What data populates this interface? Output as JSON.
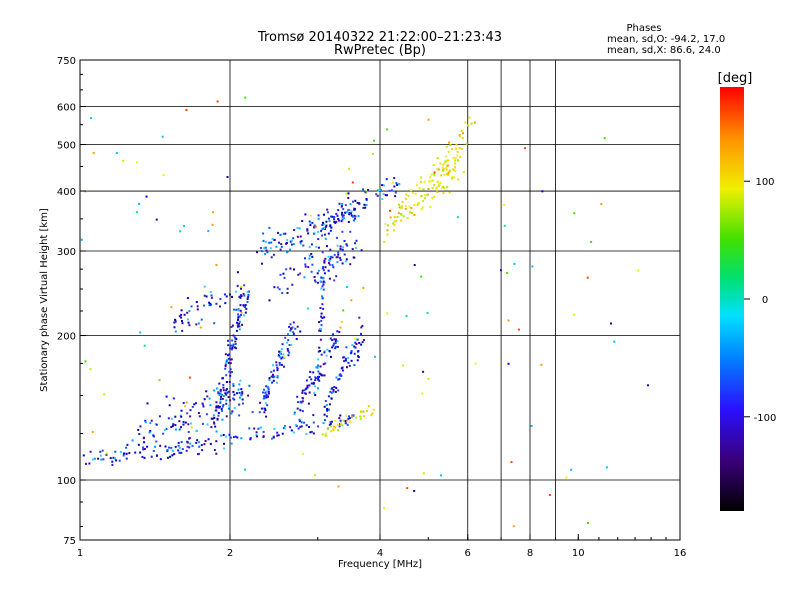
{
  "chart_data": {
    "type": "scatter",
    "title": "Tromsø 20140322 21:22:00–21:23:43",
    "subtitle": "RwPretec (Bp)",
    "xlabel": "Frequency [MHz]",
    "ylabel": "Stationary phase Virtual Height [km]",
    "x_scale": "log",
    "y_scale": "log",
    "xlim": [
      1,
      16
    ],
    "ylim": [
      75,
      750
    ],
    "x_ticks": [
      1,
      2,
      4,
      6,
      8,
      10,
      16
    ],
    "x_tick_labels": [
      "1",
      "2",
      "4",
      "6",
      "8",
      "10",
      "16"
    ],
    "x_gridlines": [
      2,
      4,
      6,
      7,
      8,
      9
    ],
    "y_ticks": [
      75,
      100,
      200,
      300,
      400,
      500,
      600,
      750
    ],
    "y_tick_labels": [
      "75",
      "100",
      "200",
      "300",
      "400",
      "500",
      "600",
      "750"
    ],
    "grid": true,
    "color_variable": "Phase",
    "stats": {
      "heading": "Phases",
      "line_o": "mean, sd,O: -94.2, 17.0",
      "line_x": "mean, sd,X: 86.6, 24.0"
    },
    "colorbar": {
      "label": "[deg]",
      "min": -180,
      "max": 180,
      "ticks": [
        100,
        0,
        -100
      ],
      "tick_labels": [
        "100",
        "0",
        "-100"
      ]
    },
    "series": [
      {
        "component": "O",
        "phase": -94.2,
        "segments": [
          {
            "x0": 1.0,
            "x1": 2.0,
            "y0": 110,
            "y1": 120,
            "count": 90,
            "spread": 0.03
          },
          {
            "x0": 2.0,
            "x1": 3.6,
            "y0": 122,
            "y1": 135,
            "count": 70,
            "spread": 0.025
          },
          {
            "x0": 1.3,
            "x1": 2.2,
            "y0": 125,
            "y1": 150,
            "count": 120,
            "spread": 0.07
          },
          {
            "x0": 1.55,
            "x1": 2.15,
            "y0": 215,
            "y1": 245,
            "count": 60,
            "spread": 0.06
          },
          {
            "x0": 1.85,
            "x1": 2.15,
            "y0": 130,
            "y1": 240,
            "count": 120,
            "spread": 0.04
          },
          {
            "x0": 2.3,
            "x1": 2.7,
            "y0": 140,
            "y1": 210,
            "count": 90,
            "spread": 0.04
          },
          {
            "x0": 2.7,
            "x1": 3.3,
            "y0": 135,
            "y1": 200,
            "count": 80,
            "spread": 0.04
          },
          {
            "x0": 3.1,
            "x1": 3.7,
            "y0": 140,
            "y1": 205,
            "count": 70,
            "spread": 0.04
          },
          {
            "x0": 2.3,
            "x1": 3.6,
            "y0": 300,
            "y1": 360,
            "count": 100,
            "spread": 0.05
          },
          {
            "x0": 3.0,
            "x1": 3.6,
            "y0": 260,
            "y1": 320,
            "count": 60,
            "spread": 0.05
          },
          {
            "x0": 2.9,
            "x1": 4.4,
            "y0": 330,
            "y1": 420,
            "count": 80,
            "spread": 0.04
          },
          {
            "x0": 2.4,
            "x1": 3.1,
            "y0": 240,
            "y1": 300,
            "count": 30,
            "spread": 0.05
          },
          {
            "x0": 3.0,
            "x1": 3.1,
            "y0": 155,
            "y1": 290,
            "count": 40,
            "spread": 0.02
          }
        ]
      },
      {
        "component": "X",
        "phase": 86.6,
        "segments": [
          {
            "x0": 3.1,
            "x1": 3.9,
            "y0": 125,
            "y1": 142,
            "count": 35,
            "spread": 0.02
          },
          {
            "x0": 4.1,
            "x1": 5.8,
            "y0": 340,
            "y1": 460,
            "count": 110,
            "spread": 0.05
          },
          {
            "x0": 5.1,
            "x1": 6.1,
            "y0": 420,
            "y1": 560,
            "count": 40,
            "spread": 0.05
          }
        ]
      },
      {
        "component": "sparse",
        "phase": null,
        "segments": [
          {
            "x0": 1.0,
            "x1": 14.0,
            "y0": 80,
            "y1": 650,
            "count": 120,
            "spread": 0.0
          }
        ]
      }
    ]
  }
}
